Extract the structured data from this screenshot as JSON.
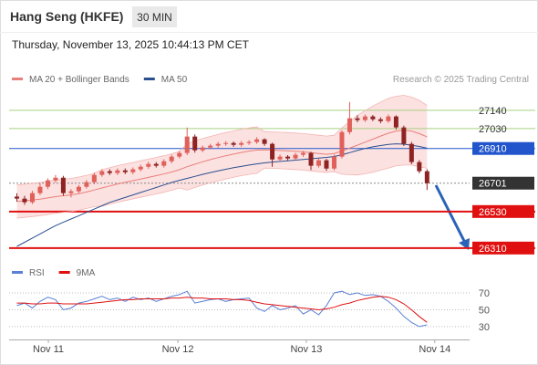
{
  "header": {
    "title": "Hang Seng (HKFE)",
    "interval": "30 MIN",
    "datetime": "Thursday, November 13, 2025 10:44:13 PM CET"
  },
  "chart_data": [
    {
      "type": "candlestick",
      "credit": "Research © 2025 Trading Central",
      "up_color": "#e0605a",
      "down_color": "#8e2323",
      "xlim": [
        -1,
        58.5
      ],
      "ylim": [
        26210,
        27310
      ],
      "candles": [
        [
          26620,
          26640,
          26590,
          26608
        ],
        [
          26608,
          26625,
          26570,
          26586
        ],
        [
          26586,
          26655,
          26575,
          26641
        ],
        [
          26641,
          26700,
          26630,
          26679
        ],
        [
          26679,
          26730,
          26665,
          26718
        ],
        [
          26718,
          26750,
          26705,
          26734
        ],
        [
          26734,
          26745,
          26625,
          26641
        ],
        [
          26641,
          26665,
          26615,
          26652
        ],
        [
          26652,
          26690,
          26640,
          26679
        ],
        [
          26679,
          26720,
          26668,
          26707
        ],
        [
          26707,
          26765,
          26695,
          26751
        ],
        [
          26751,
          26785,
          26740,
          26773
        ],
        [
          26773,
          26785,
          26750,
          26762
        ],
        [
          26762,
          26790,
          26750,
          26778
        ],
        [
          26778,
          26790,
          26755,
          26767
        ],
        [
          26767,
          26796,
          26755,
          26784
        ],
        [
          26784,
          26812,
          26772,
          26800
        ],
        [
          26800,
          26830,
          26788,
          26817
        ],
        [
          26817,
          26828,
          26795,
          26806
        ],
        [
          26806,
          26845,
          26795,
          26833
        ],
        [
          26833,
          26873,
          26820,
          26861
        ],
        [
          26861,
          26895,
          26850,
          26883
        ],
        [
          26883,
          27036,
          26870,
          26982
        ],
        [
          26982,
          26995,
          26885,
          26899
        ],
        [
          26899,
          26928,
          26888,
          26916
        ],
        [
          26916,
          26938,
          26905,
          26927
        ],
        [
          26927,
          26950,
          26915,
          26938
        ],
        [
          26938,
          26955,
          26926,
          26943
        ],
        [
          26943,
          26952,
          26920,
          26932
        ],
        [
          26932,
          26955,
          26920,
          26943
        ],
        [
          26943,
          26960,
          26932,
          26949
        ],
        [
          26949,
          26978,
          26938,
          26965
        ],
        [
          26965,
          26972,
          26926,
          26938
        ],
        [
          26938,
          26945,
          26800,
          26844
        ],
        [
          26844,
          26873,
          26832,
          26861
        ],
        [
          26861,
          26870,
          26838,
          26850
        ],
        [
          26850,
          26884,
          26840,
          26872
        ],
        [
          26872,
          26895,
          26860,
          26883
        ],
        [
          26883,
          26890,
          26780,
          26806
        ],
        [
          26806,
          26850,
          26795,
          26839
        ],
        [
          26839,
          26848,
          26775,
          26789
        ],
        [
          26789,
          26873,
          26778,
          26861
        ],
        [
          26861,
          27020,
          26850,
          27009
        ],
        [
          27009,
          27190,
          26995,
          27092
        ],
        [
          27092,
          27110,
          27068,
          27081
        ],
        [
          27081,
          27115,
          27070,
          27103
        ],
        [
          27103,
          27112,
          27075,
          27086
        ],
        [
          27086,
          27098,
          27062,
          27075
        ],
        [
          27075,
          27115,
          27064,
          27103
        ],
        [
          27103,
          27110,
          27025,
          27037
        ],
        [
          27037,
          27048,
          26925,
          26938
        ],
        [
          26938,
          26950,
          26815,
          26828
        ],
        [
          26828,
          26840,
          26760,
          26773
        ],
        [
          26773,
          26785,
          26660,
          26701
        ]
      ],
      "series": [
        {
          "name": "MA 20 + Bollinger Bands",
          "color": "#e8807a",
          "band_color": "#fbdada",
          "values": [
            26590,
            26595,
            26600,
            26605,
            26612,
            26620,
            26625,
            26630,
            26638,
            26648,
            26660,
            26672,
            26684,
            26696,
            26706,
            26716,
            26726,
            26736,
            26746,
            26756,
            26768,
            26782,
            26800,
            26815,
            26830,
            26843,
            26855,
            26866,
            26876,
            26886,
            26894,
            26900,
            26902,
            26900,
            26898,
            26896,
            26893,
            26890,
            26885,
            26880,
            26875,
            26880,
            26895,
            26912,
            26930,
            26948,
            26966,
            26985,
            27002,
            27015,
            27020,
            27015,
            27000,
            26980
          ],
          "band_upper": [
            26690,
            26695,
            26700,
            26705,
            26712,
            26720,
            26725,
            26730,
            26738,
            26748,
            26760,
            26782,
            26794,
            26806,
            26816,
            26826,
            26836,
            26846,
            26856,
            26866,
            26878,
            26892,
            26940,
            26955,
            26970,
            26983,
            26995,
            27006,
            27016,
            27026,
            27034,
            27040,
            27012,
            27010,
            27008,
            27006,
            27003,
            27000,
            26995,
            26990,
            26985,
            26990,
            27035,
            27072,
            27110,
            27138,
            27166,
            27190,
            27212,
            27225,
            27230,
            27220,
            27200,
            27170
          ],
          "band_lower": [
            26490,
            26495,
            26500,
            26505,
            26512,
            26520,
            26525,
            26530,
            26538,
            26548,
            26560,
            26562,
            26574,
            26586,
            26596,
            26606,
            26616,
            26626,
            26636,
            26646,
            26658,
            26672,
            26660,
            26675,
            26690,
            26703,
            26715,
            26726,
            26736,
            26746,
            26754,
            26760,
            26792,
            26790,
            26788,
            26786,
            26783,
            26780,
            26775,
            26770,
            26765,
            26770,
            26755,
            26752,
            26750,
            26758,
            26766,
            26780,
            26792,
            26805,
            26810,
            26810,
            26800,
            26790
          ]
        },
        {
          "name": "MA 50",
          "color": "#2b4f8e",
          "values": [
            26320,
            26345,
            26370,
            26395,
            26420,
            26445,
            26465,
            26485,
            26505,
            26525,
            26545,
            26565,
            26585,
            26600,
            26615,
            26630,
            26645,
            26660,
            26675,
            26690,
            26705,
            26718,
            26730,
            26742,
            26754,
            26765,
            26775,
            26785,
            26794,
            26802,
            26810,
            26817,
            26823,
            26828,
            26832,
            26836,
            26840,
            26844,
            26848,
            26852,
            26856,
            26862,
            26872,
            26885,
            26898,
            26910,
            26920,
            26928,
            26935,
            26938,
            26936,
            26930,
            26922,
            26912
          ]
        }
      ],
      "levels": [
        {
          "value": 27140,
          "color": "#a8d080",
          "boxed": false
        },
        {
          "value": 27030,
          "color": "#a8d080",
          "boxed": false
        },
        {
          "value": 26910,
          "color": "#2255cc",
          "boxed": true
        },
        {
          "value": 26701,
          "color": "#333333",
          "boxed": true,
          "dotted": true
        },
        {
          "value": 26530,
          "color": "#e01010",
          "boxed": true
        },
        {
          "value": 26310,
          "color": "#e01010",
          "boxed": true
        }
      ]
    },
    {
      "type": "line",
      "xlim": [
        -1,
        58.5
      ],
      "ylim": [
        19,
        82
      ],
      "yticks": [
        30,
        50,
        70
      ],
      "grid": true,
      "xticks": [
        {
          "value": 4.07,
          "label": "Nov 11"
        },
        {
          "value": 20.8,
          "label": "Nov 12"
        },
        {
          "value": 37.4,
          "label": "Nov 13"
        },
        {
          "value": 54,
          "label": "Nov 14"
        }
      ],
      "series": [
        {
          "name": "RSI",
          "color": "#5b7fd6",
          "values": [
            55,
            58,
            52,
            60,
            65,
            62,
            50,
            52,
            58,
            60,
            63,
            66,
            62,
            64,
            60,
            65,
            62,
            64,
            60,
            63,
            66,
            68,
            72,
            58,
            60,
            62,
            63,
            60,
            62,
            63,
            64,
            52,
            48,
            55,
            50,
            52,
            55,
            45,
            50,
            44,
            55,
            70,
            72,
            68,
            70,
            67,
            68,
            66,
            60,
            52,
            42,
            35,
            30,
            32
          ]
        },
        {
          "name": "9MA",
          "color": "#e01010",
          "values": [
            58,
            58,
            57,
            57,
            58,
            58,
            57,
            57,
            57,
            57,
            58,
            59,
            60,
            61,
            62,
            62,
            63,
            63,
            63,
            63,
            64,
            64,
            65,
            64,
            64,
            63,
            63,
            63,
            62,
            62,
            61,
            59,
            57,
            56,
            55,
            54,
            53,
            52,
            51,
            50,
            51,
            53,
            56,
            58,
            61,
            63,
            65,
            66,
            65,
            62,
            57,
            50,
            42,
            35
          ]
        }
      ]
    }
  ]
}
